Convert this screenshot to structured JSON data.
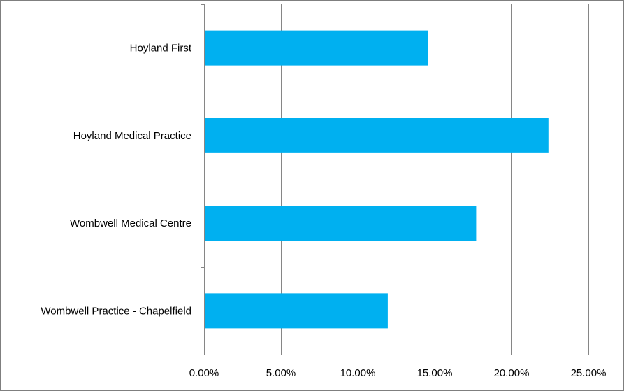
{
  "colors": {
    "bar": "#00B0F0",
    "grid": "#868686",
    "axis": "#868686",
    "text": "#000000"
  },
  "chart_data": {
    "type": "bar",
    "orientation": "horizontal",
    "title": "",
    "xlabel": "",
    "ylabel": "",
    "categories": [
      "Hoyland First",
      "Hoyland Medical Practice",
      "Wombwell Medical Centre",
      "Wombwell Practice - Chapelfield"
    ],
    "values": [
      0.1455,
      0.224,
      0.177,
      0.1195
    ],
    "xlim": [
      0,
      0.25
    ],
    "x_ticks": [
      0,
      0.05,
      0.1,
      0.15,
      0.2,
      0.25
    ],
    "x_tick_labels": [
      "0.00%",
      "5.00%",
      "10.00%",
      "15.00%",
      "20.00%",
      "25.00%"
    ],
    "grid": true,
    "legend": "none"
  }
}
